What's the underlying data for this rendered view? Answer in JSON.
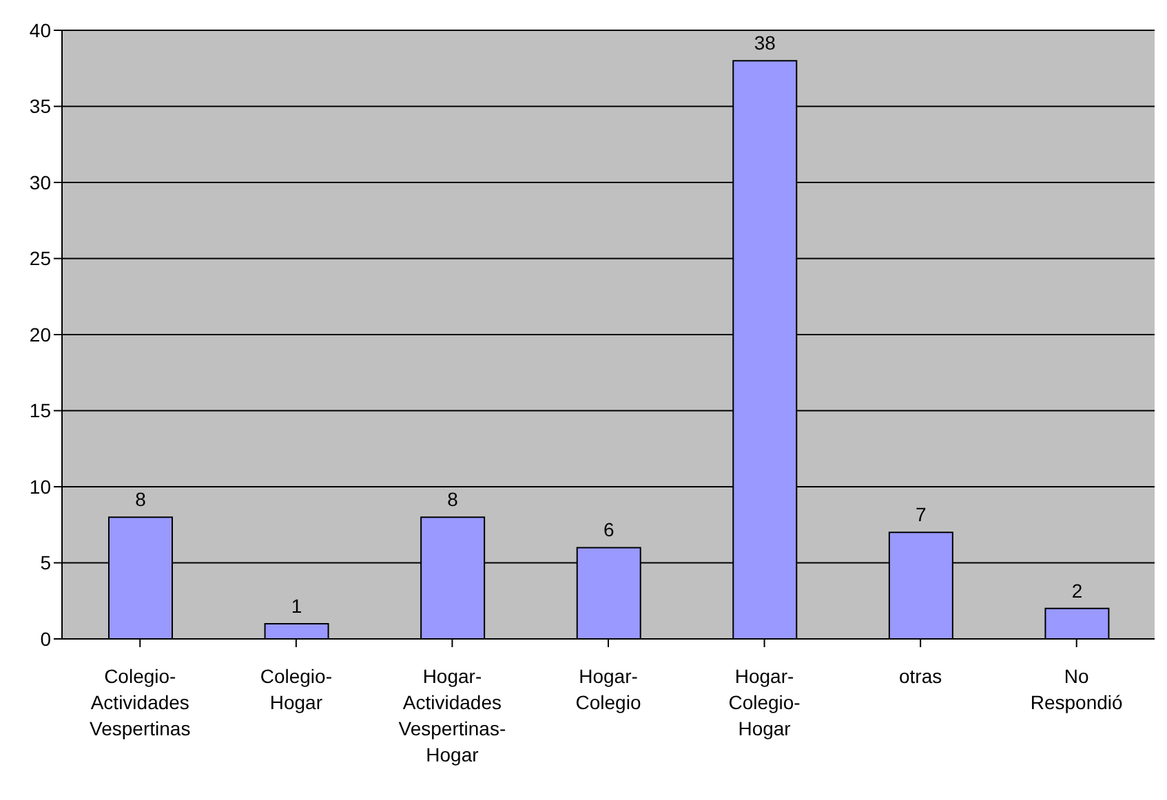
{
  "chart_data": {
    "type": "bar",
    "categories": [
      "Colegio-Actividades Vespertinas",
      "Colegio-Hogar",
      "Hogar-Actividades Vespertinas-Hogar",
      "Hogar-Colegio",
      "Hogar-Colegio-Hogar",
      "otras",
      "No Respondió"
    ],
    "values": [
      8,
      1,
      8,
      6,
      38,
      7,
      2
    ],
    "color": "#9999ff",
    "ylim": [
      0,
      40
    ],
    "yticks": [
      0,
      5,
      10,
      15,
      20,
      25,
      30,
      35,
      40
    ],
    "grid": "y",
    "data_labels": true
  }
}
